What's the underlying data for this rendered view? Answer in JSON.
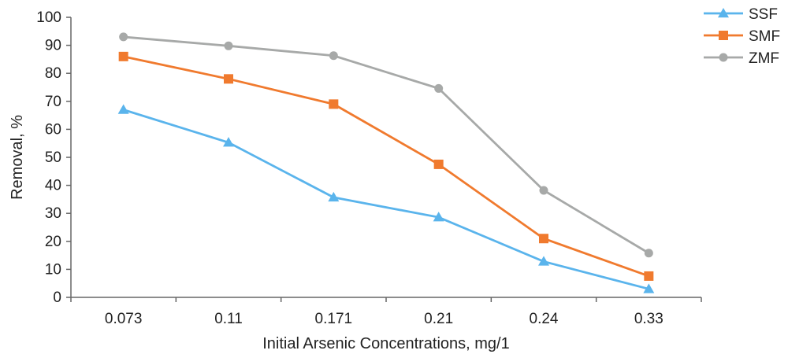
{
  "chart_data": {
    "type": "line",
    "categories": [
      "0.073",
      "0.11",
      "0.171",
      "0.21",
      "0.24",
      "0.33"
    ],
    "xlabel": "Initial Arsenic Concentrations, mg/1",
    "ylabel": "Removal, %",
    "ylim": [
      0,
      100
    ],
    "yticks": [
      0,
      10,
      20,
      30,
      40,
      50,
      60,
      70,
      80,
      90,
      100
    ],
    "grid": false,
    "legend_position": "top-right",
    "series": [
      {
        "name": "SSF",
        "color": "#5ab4ec",
        "marker": "triangle",
        "values": [
          67,
          55.3,
          35.7,
          28.6,
          12.8,
          3
        ]
      },
      {
        "name": "SMF",
        "color": "#f07a2e",
        "marker": "square",
        "values": [
          86,
          78,
          69,
          47.5,
          21,
          7.6
        ]
      },
      {
        "name": "ZMF",
        "color": "#a7a9a8",
        "marker": "circle",
        "values": [
          93,
          89.8,
          86.3,
          74.6,
          38.2,
          15.8
        ]
      }
    ]
  }
}
